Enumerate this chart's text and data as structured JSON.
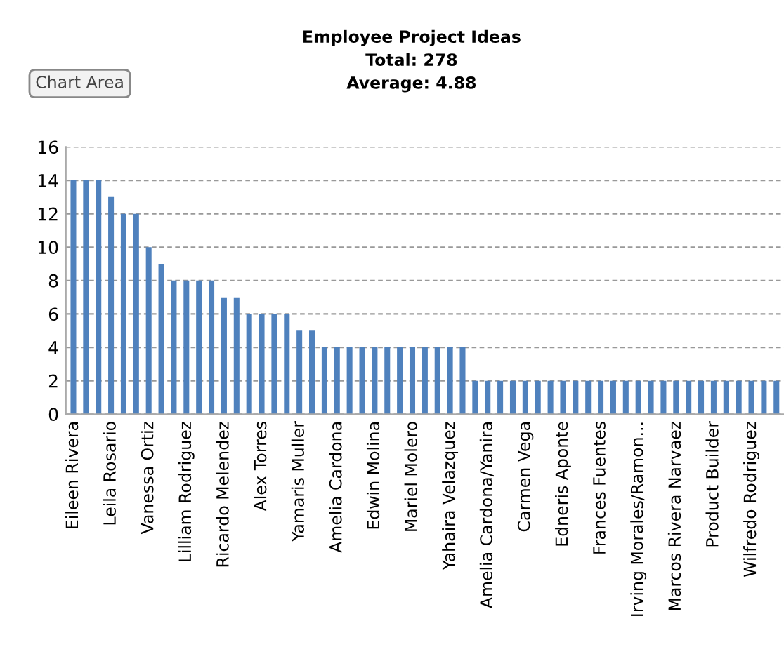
{
  "chart_data": {
    "type": "bar",
    "title": "Employee Project Ideas\nTotal: 278\nAverage: 4.88",
    "categories": [
      "Eileen Rivera",
      null,
      null,
      "Leila Rosario",
      null,
      null,
      "Vanessa Ortiz",
      null,
      null,
      "Lilliam Rodriguez",
      null,
      null,
      "Ricardo Melendez",
      null,
      null,
      "Alex Torres",
      null,
      null,
      "Yamaris Muller",
      null,
      null,
      "Amelia Cardona",
      null,
      null,
      "Edwin Molina",
      null,
      null,
      "Mariel Molero",
      null,
      null,
      "Yahaira Velazquez",
      null,
      null,
      "Amelia Cardona/Yanira",
      null,
      null,
      "Carmen Vega",
      null,
      null,
      "Edneris Aponte",
      null,
      null,
      "Frances Fuentes",
      null,
      null,
      "Irving Morales/Ramon...",
      null,
      null,
      "Marcos Rivera Narvaez",
      null,
      null,
      "Product Builder",
      null,
      null,
      "Wilfredo Rodriguez",
      null,
      null
    ],
    "values": [
      14,
      14,
      14,
      13,
      12,
      12,
      10,
      9,
      8,
      8,
      8,
      8,
      7,
      7,
      6,
      6,
      6,
      6,
      5,
      5,
      4,
      4,
      4,
      4,
      4,
      4,
      4,
      4,
      4,
      4,
      4,
      4,
      2,
      2,
      2,
      2,
      2,
      2,
      2,
      2,
      2,
      2,
      2,
      2,
      2,
      2,
      2,
      2,
      2,
      2,
      2,
      2,
      2,
      2,
      2,
      2,
      2
    ],
    "color": "#4f81bd",
    "ylim": [
      0,
      16
    ],
    "yticks": [
      0,
      2,
      4,
      6,
      8,
      10,
      12,
      14,
      16
    ],
    "grid": "y",
    "annotations": [
      "Chart Area"
    ]
  }
}
